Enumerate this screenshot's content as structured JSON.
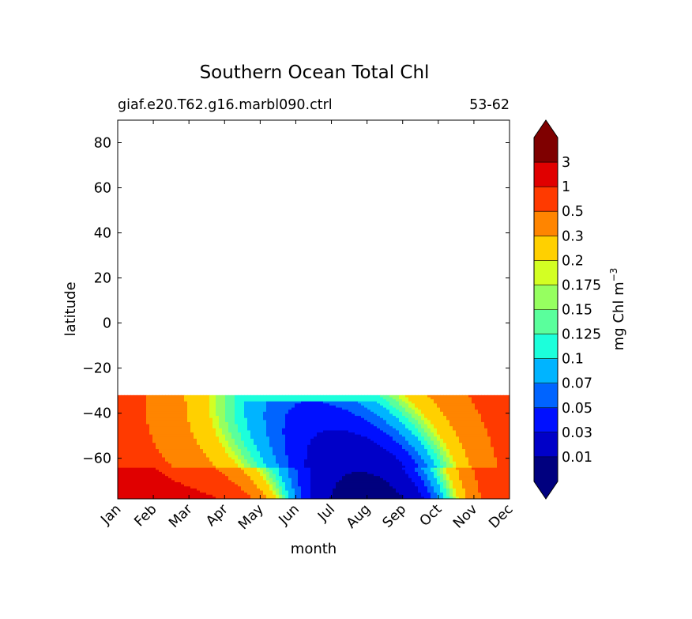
{
  "chart_data": {
    "type": "heatmap",
    "title": "Southern Ocean Total Chl",
    "subtitle_left": "giaf.e20.T62.g16.marbl090.ctrl",
    "subtitle_right": "53-62",
    "xlabel": "month",
    "ylabel": "latitude",
    "colorbar_label": "mg Chl m",
    "colorbar_label_exp": "−3",
    "x_ticks": [
      "Jan",
      "Feb",
      "Mar",
      "Apr",
      "May",
      "Jun",
      "Jul",
      "Aug",
      "Sep",
      "Oct",
      "Nov",
      "Dec"
    ],
    "y_ticks": [
      80,
      60,
      40,
      20,
      0,
      -20,
      -40,
      -60
    ],
    "y_tick_labels": [
      "80",
      "60",
      "40",
      "20",
      "0",
      "−20",
      "−40",
      "−60"
    ],
    "ylim": [
      -78,
      90
    ],
    "data_lat_max": -32,
    "levels": [
      0.01,
      0.03,
      0.05,
      0.07,
      0.1,
      0.125,
      0.15,
      0.175,
      0.2,
      0.3,
      0.5,
      1,
      3
    ],
    "level_labels": [
      "0.01",
      "0.03",
      "0.05",
      "0.07",
      "0.1",
      "0.125",
      "0.15",
      "0.175",
      "0.2",
      "0.3",
      "0.5",
      "1",
      "3"
    ],
    "colors": [
      "#00007f",
      "#0000c8",
      "#0010ff",
      "#0064ff",
      "#00b4ff",
      "#1cffdb",
      "#5aff9c",
      "#96ff60",
      "#d3ff23",
      "#ffd000",
      "#ff8500",
      "#ff3a00",
      "#e00000",
      "#7f0000"
    ],
    "extend": "both",
    "grid": false
  }
}
